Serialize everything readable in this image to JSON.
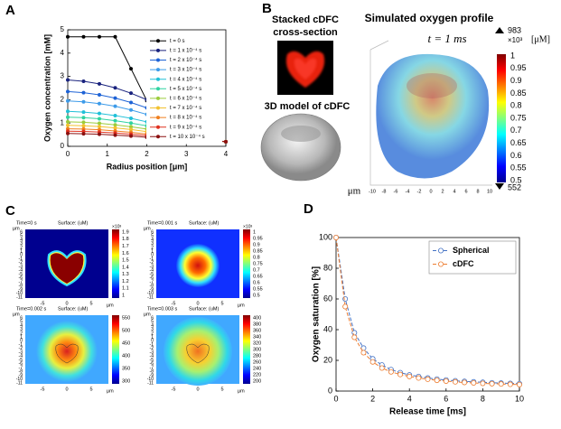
{
  "panel_labels": [
    "A",
    "B",
    "C",
    "D"
  ],
  "chart_data": [
    {
      "type": "line",
      "xlabel": "Radius position [μm]",
      "ylabel": "Oxygen concentration [mM]",
      "x": [
        0,
        0.4,
        0.8,
        1.2,
        1.6,
        2.0,
        2.4,
        2.8,
        3.2,
        3.6,
        4.0
      ],
      "xlim": [
        0,
        4
      ],
      "xticks": [
        0,
        1,
        2,
        3,
        4
      ],
      "ylim": [
        0,
        5
      ],
      "yticks": [
        0,
        1,
        2,
        3,
        4,
        5
      ],
      "legend": "upper right",
      "marker_fill": "filled",
      "line_style": "solid",
      "series": [
        {
          "name": "t = 0 s",
          "color": "#000000",
          "values": [
            4.7,
            4.7,
            4.7,
            4.7,
            3.33,
            1.96,
            0.6,
            0.45,
            0.35,
            0.27,
            0.2
          ]
        },
        {
          "name": "t = 1 x 10⁻⁴ s",
          "color": "#1a237e",
          "values": [
            2.85,
            2.79,
            2.68,
            2.51,
            2.28,
            2.0,
            0.45,
            0.38,
            0.32,
            0.26,
            0.2
          ]
        },
        {
          "name": "t = 2 x 10⁻⁴ s",
          "color": "#1e63d6",
          "values": [
            2.35,
            2.3,
            2.21,
            2.07,
            1.88,
            1.65,
            0.45,
            0.38,
            0.32,
            0.26,
            0.2
          ]
        },
        {
          "name": "t = 3 x 10⁻⁴ s",
          "color": "#3d9be9",
          "values": [
            1.95,
            1.91,
            1.83,
            1.72,
            1.56,
            1.37,
            0.45,
            0.38,
            0.32,
            0.26,
            0.2
          ]
        },
        {
          "name": "t = 4 x 10⁻⁴ s",
          "color": "#20c0d8",
          "values": [
            1.5,
            1.47,
            1.41,
            1.32,
            1.2,
            1.05,
            0.45,
            0.38,
            0.32,
            0.26,
            0.2
          ]
        },
        {
          "name": "t = 5 x 10⁻⁴ s",
          "color": "#2fd3a0",
          "values": [
            1.25,
            1.23,
            1.18,
            1.1,
            1.0,
            0.88,
            0.45,
            0.38,
            0.32,
            0.26,
            0.2
          ]
        },
        {
          "name": "t = 6 x 10⁻⁴ s",
          "color": "#9ccc3c",
          "values": [
            1.05,
            1.03,
            0.99,
            0.92,
            0.84,
            0.74,
            0.45,
            0.38,
            0.32,
            0.26,
            0.2
          ]
        },
        {
          "name": "t = 7 x 10⁻⁴ s",
          "color": "#f2c12e",
          "values": [
            0.9,
            0.88,
            0.85,
            0.79,
            0.72,
            0.63,
            0.45,
            0.38,
            0.32,
            0.26,
            0.2
          ]
        },
        {
          "name": "t = 8 x 10⁻⁴ s",
          "color": "#f07f1e",
          "values": [
            0.75,
            0.74,
            0.71,
            0.66,
            0.6,
            0.53,
            0.44,
            0.38,
            0.32,
            0.26,
            0.2
          ]
        },
        {
          "name": "t = 9 x 10⁻⁴ s",
          "color": "#e0301e",
          "values": [
            0.65,
            0.64,
            0.61,
            0.57,
            0.52,
            0.46,
            0.42,
            0.37,
            0.32,
            0.26,
            0.2
          ]
        },
        {
          "name": "t = 10 x 10⁻⁴ s",
          "color": "#8b1010",
          "values": [
            0.55,
            0.54,
            0.52,
            0.48,
            0.44,
            0.39,
            0.4,
            0.36,
            0.31,
            0.26,
            0.2
          ]
        }
      ]
    },
    {
      "type": "line",
      "xlabel": "Release time [ms]",
      "ylabel": "Oxygen saturation [%]",
      "x": [
        0,
        0.5,
        1,
        1.5,
        2,
        2.5,
        3,
        3.5,
        4,
        4.5,
        5,
        5.5,
        6,
        6.5,
        7,
        7.5,
        8,
        8.5,
        9,
        9.5,
        10
      ],
      "xlim": [
        0,
        10
      ],
      "xticks": [
        0,
        2,
        4,
        6,
        8,
        10
      ],
      "ylim": [
        0,
        100
      ],
      "yticks": [
        0,
        20,
        40,
        60,
        80,
        100
      ],
      "legend": "upper right",
      "marker_fill": "none",
      "line_style": "dashed",
      "series": [
        {
          "name": "Spherical",
          "color": "#4472c4",
          "values": [
            100,
            60,
            38,
            28,
            21,
            17,
            14,
            12,
            10.5,
            9.5,
            8.5,
            7.8,
            7.2,
            6.7,
            6.3,
            6,
            5.7,
            5.4,
            5.2,
            5,
            4.8
          ]
        },
        {
          "name": "cDFC",
          "color": "#ed7d31",
          "values": [
            100,
            55,
            35,
            25,
            19,
            15,
            12.5,
            10.8,
            9.5,
            8.5,
            7.7,
            7,
            6.5,
            6,
            5.6,
            5.3,
            5,
            4.8,
            4.6,
            4.4,
            4.2
          ]
        }
      ]
    }
  ],
  "panel_b": {
    "stack_title_lines": [
      "Stacked cDFC",
      "cross-section"
    ],
    "model_title": "3D model of cDFC",
    "profile_title": "Simulated oxygen profile",
    "time_label": "t = 1 ms",
    "colorbar_max": "983",
    "colorbar_exponent": "×10³",
    "colorbar_unit": "[μM]",
    "colorbar_min": "552",
    "colorbar_ticks": [
      1,
      0.95,
      0.9,
      0.85,
      0.8,
      0.75,
      0.7,
      0.65,
      0.6,
      0.55,
      0.5
    ],
    "axis_unit": "μm",
    "axis_ticks": [
      -10,
      -8,
      -6,
      -4,
      -2,
      0,
      2,
      4,
      6,
      8,
      10
    ]
  },
  "panel_c": {
    "unit": "μm",
    "y_ticks": [
      6,
      5,
      4,
      3,
      2,
      1,
      0,
      -1,
      -2,
      -3,
      -4,
      -5,
      -6,
      -7,
      -8,
      -9,
      -10,
      -11
    ],
    "x_ticks": [
      -5,
      0,
      5
    ],
    "maps": [
      {
        "time": "Time=0 s",
        "surface": "Surface:  (uM)",
        "exponent": "×10³",
        "colorbar_ticks": [
          1.9,
          1.8,
          1.7,
          1.6,
          1.5,
          1.4,
          1.3,
          1.2,
          1.1,
          1
        ]
      },
      {
        "time": "Time=0.001 s",
        "surface": "Surface:  (uM)",
        "exponent": "×10³",
        "colorbar_ticks": [
          1,
          0.95,
          0.9,
          0.85,
          0.8,
          0.75,
          0.7,
          0.65,
          0.6,
          0.55,
          0.5
        ]
      },
      {
        "time": "Time=0.002 s",
        "surface": "Surface:  (uM)",
        "colorbar_ticks": [
          550,
          500,
          450,
          400,
          350,
          300
        ]
      },
      {
        "time": "Time=0.003 s",
        "surface": "Surface:  (uM)",
        "colorbar_ticks": [
          400,
          380,
          360,
          340,
          320,
          300,
          280,
          260,
          240,
          220,
          200
        ]
      }
    ]
  }
}
